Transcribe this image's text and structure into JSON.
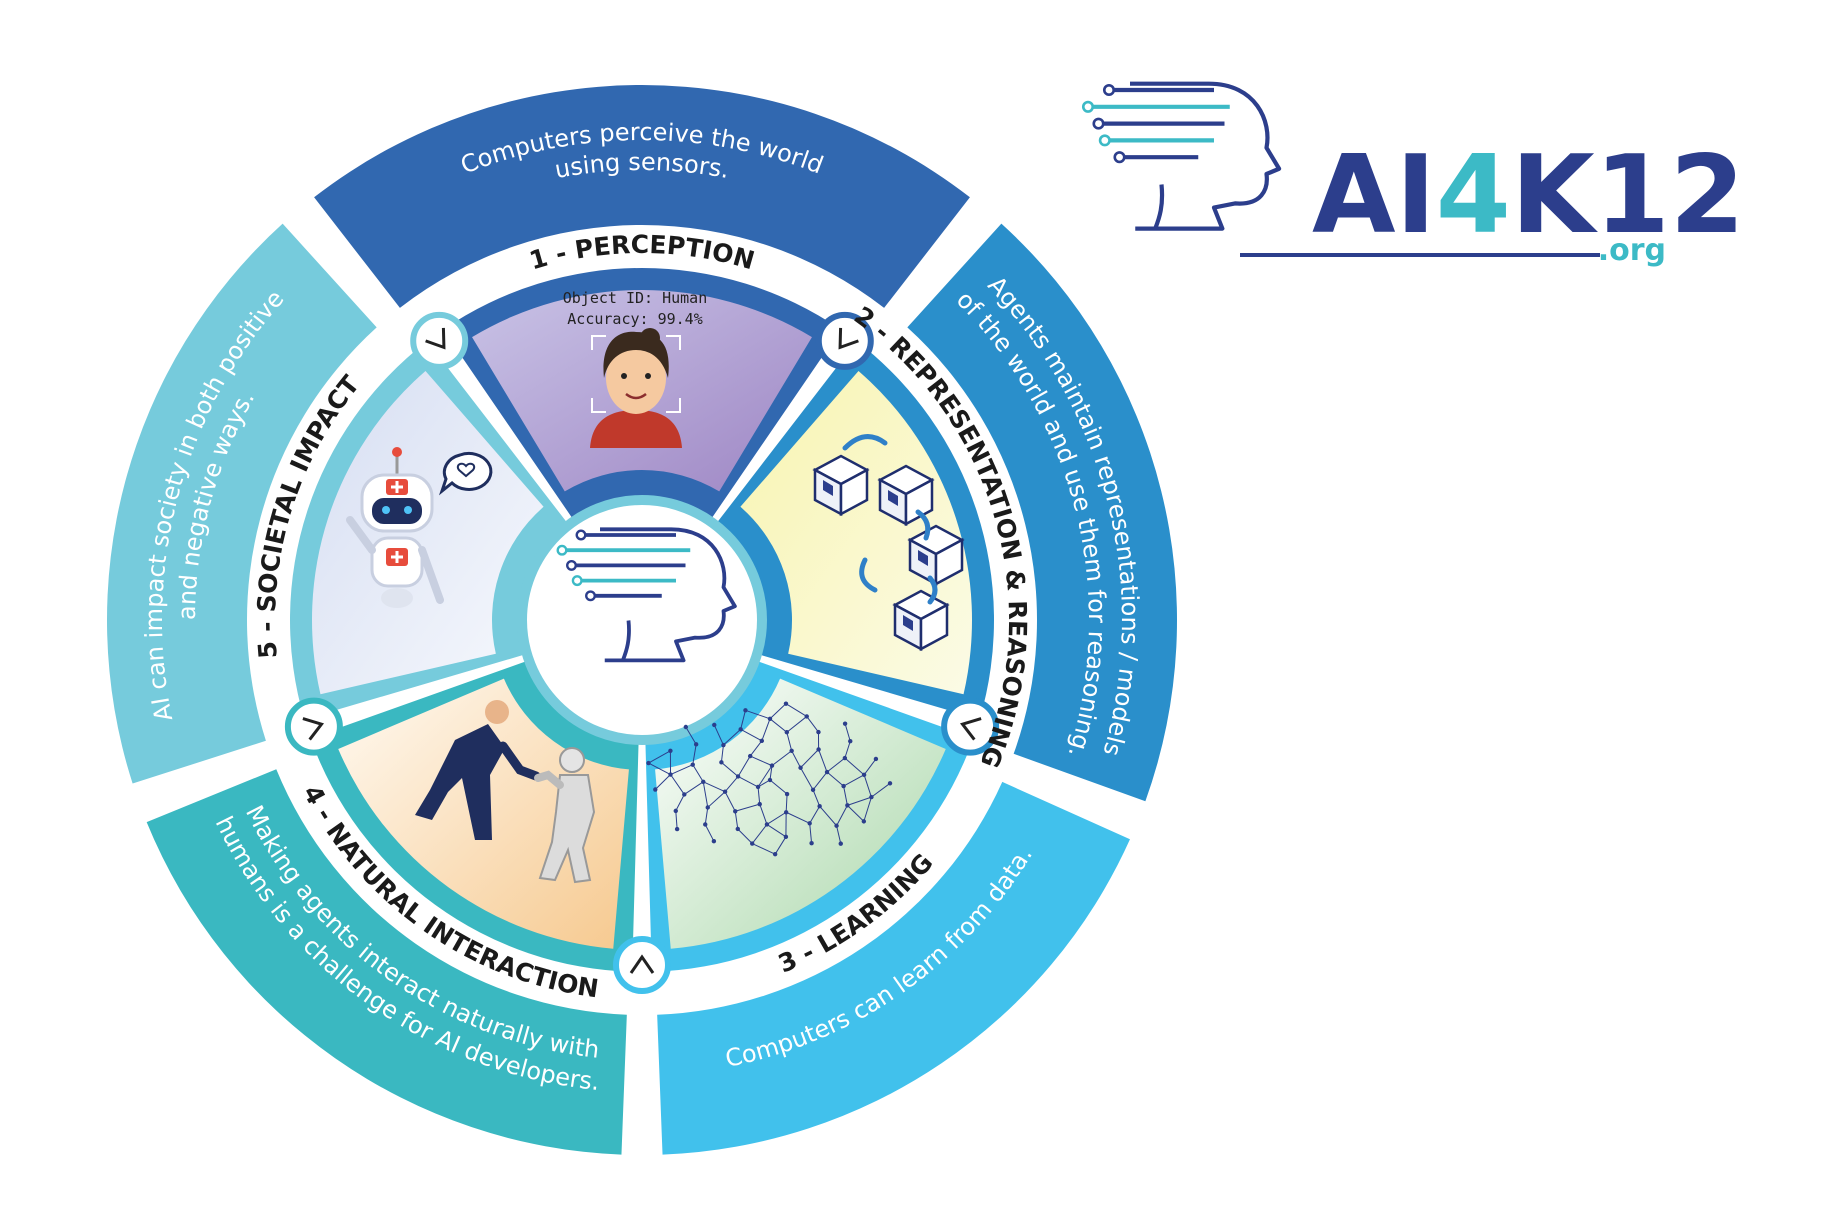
{
  "logo": {
    "main_prefix": "AI",
    "main_digit": "4",
    "main_suffix": "K12",
    "domain": ".org"
  },
  "colors": {
    "perception": "#3168b0",
    "representation": "#2a8fcb",
    "learning": "#41c1ec",
    "interaction": "#3ab8c1",
    "societal": "#76cbdc",
    "logo_navy": "#2c3e8c",
    "logo_teal": "#3cbac6"
  },
  "ideas": [
    {
      "number": "1",
      "title": "1 - PERCEPTION",
      "description": "Computers perceive the world using sensors.",
      "desc_lines": [
        "Computers perceive the world",
        "using sensors."
      ]
    },
    {
      "number": "2",
      "title": "2 - REPRESENTATION & REASONING",
      "description": "Agents maintain representations / models of the world and use them for reasoning.",
      "desc_lines": [
        "Agents maintain representations / models",
        "of the world and use them for reasoning."
      ]
    },
    {
      "number": "3",
      "title": "3 - LEARNING",
      "description": "Computers can learn from data.",
      "desc_lines": [
        "Computers can learn from data."
      ]
    },
    {
      "number": "4",
      "title": "4 - NATURAL INTERACTION",
      "description": "Making agents interact naturally with humans is a challenge for AI developers.",
      "desc_lines": [
        "Making agents interact naturally with",
        "humans is a challenge for AI developers."
      ]
    },
    {
      "number": "5",
      "title": "5 - SOCIETAL IMPACT",
      "description": "AI can impact society in both positive and negative ways.",
      "desc_lines": [
        "AI can impact society in both positive",
        "and negative ways."
      ]
    }
  ],
  "perception_panel": {
    "object_id": "Object ID: Human",
    "accuracy": "Accuracy: 99.4%"
  },
  "icons": [
    "brain-head-icon",
    "face-recognition-icon",
    "rotating-cubes-icon",
    "neural-network-brain-icon",
    "handshake-robot-icon",
    "medical-robot-icon",
    "chevron-arrow-icon"
  ]
}
